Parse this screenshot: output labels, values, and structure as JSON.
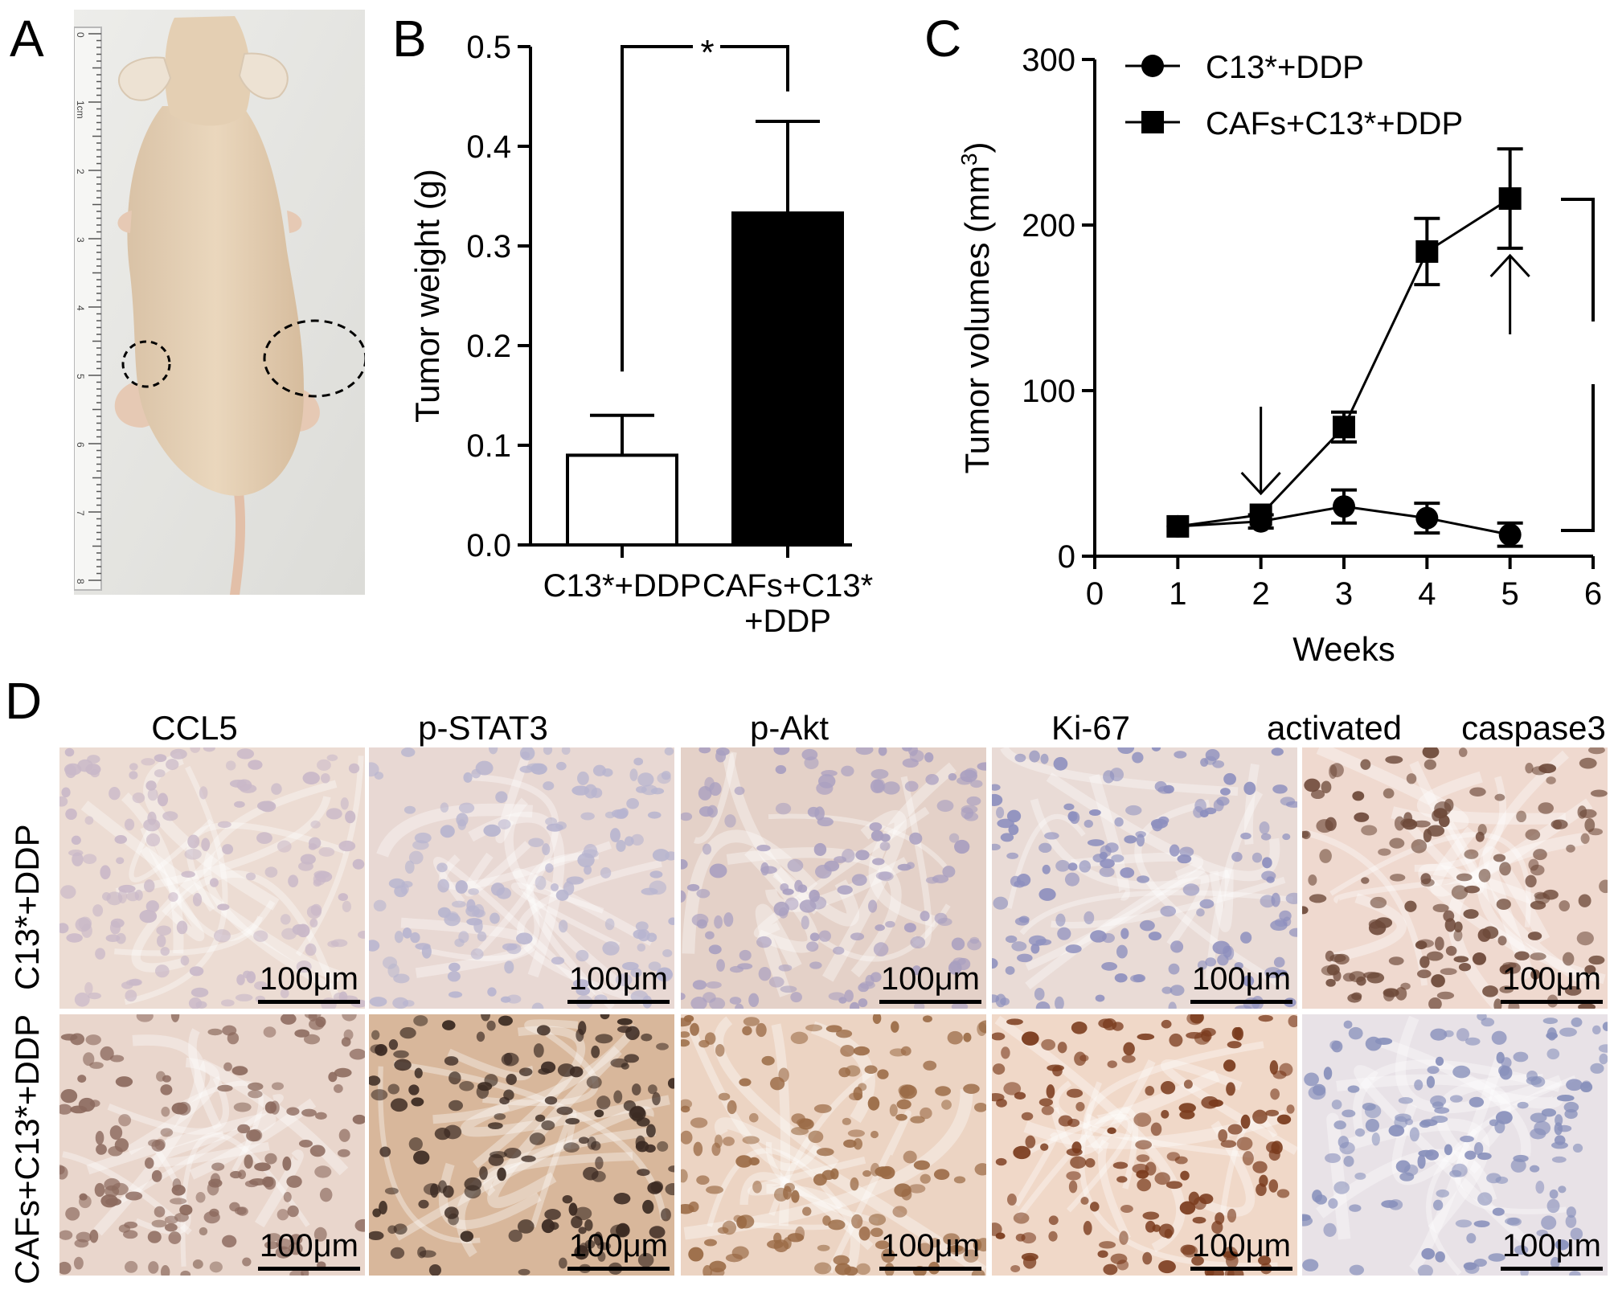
{
  "panels": {
    "a": {
      "letter": "A"
    },
    "b": {
      "letter": "B"
    },
    "c": {
      "letter": "C"
    },
    "d": {
      "letter": "D"
    }
  },
  "ruler": {
    "ticks": [
      "0",
      "1cm",
      "2",
      "3",
      "4",
      "5",
      "6",
      "7",
      "8"
    ]
  },
  "chart_data": [
    {
      "panel": "B",
      "type": "bar",
      "ylabel": "Tumor weight (g)",
      "ylim": [
        0,
        0.5
      ],
      "yticks": [
        "0.0",
        "0.1",
        "0.2",
        "0.3",
        "0.4",
        "0.5"
      ],
      "categories": [
        [
          "C13*+DDP"
        ],
        [
          "CAFs+C13*",
          "+DDP"
        ]
      ],
      "values": [
        0.09,
        0.333
      ],
      "errors": [
        0.04,
        0.092
      ],
      "fills": [
        "#ffffff",
        "#000000"
      ],
      "significance": "*"
    },
    {
      "panel": "C",
      "type": "line",
      "xlabel": "Weeks",
      "ylabel_main": "Tumor volumes (mm",
      "ylabel_sup": "3",
      "ylabel_end": ")",
      "xlim": [
        0,
        6
      ],
      "ylim": [
        0,
        300
      ],
      "xticks": [
        "0",
        "1",
        "2",
        "3",
        "4",
        "5",
        "6"
      ],
      "yticks": [
        "0",
        "100",
        "200",
        "300"
      ],
      "series": [
        {
          "name": "C13*+DDP",
          "marker": "circle",
          "x": [
            1,
            2,
            3,
            4,
            5
          ],
          "y": [
            18,
            21,
            30,
            23,
            13
          ],
          "err": [
            0,
            4,
            10,
            9,
            7
          ]
        },
        {
          "name": "CAFs+C13*+DDP",
          "marker": "square",
          "x": [
            1,
            2,
            3,
            4,
            5
          ],
          "y": [
            18,
            25,
            78,
            184,
            216
          ],
          "err": [
            0,
            0,
            9,
            20,
            30
          ]
        }
      ],
      "arrows_at_weeks": [
        2,
        5
      ],
      "significance": "* *"
    }
  ],
  "ihc": {
    "stains": [
      "CCL5",
      "p-STAT3",
      "p-Akt",
      "Ki-67",
      "activated",
      "caspase3"
    ],
    "rows": [
      "C13*+DDP",
      "CAFs+C13*+DDP"
    ],
    "scale_bar": "100μm"
  }
}
